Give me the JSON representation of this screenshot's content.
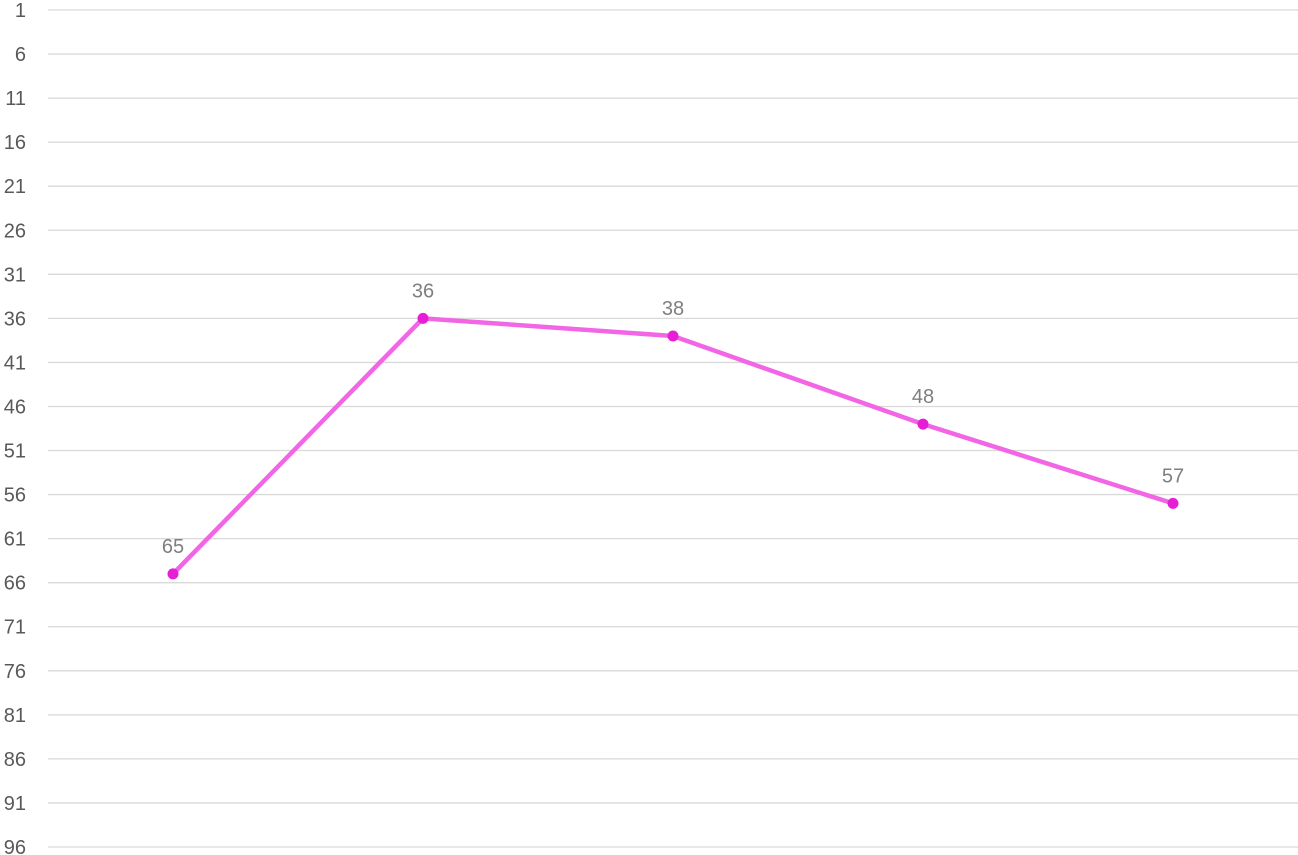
{
  "chart_data": {
    "type": "line",
    "title": "",
    "xlabel": "",
    "ylabel": "",
    "y_axis_reversed": true,
    "ylim": [
      1,
      96
    ],
    "y_ticks": [
      1,
      6,
      11,
      16,
      21,
      26,
      31,
      36,
      41,
      46,
      51,
      56,
      61,
      66,
      71,
      76,
      81,
      86,
      91,
      96
    ],
    "y_tick_labels": [
      "1",
      "6",
      "11",
      "16",
      "21",
      "26",
      "31",
      "36",
      "41",
      "46",
      "51",
      "56",
      "61",
      "66",
      "71",
      "76",
      "81",
      "86",
      "91",
      "96"
    ],
    "grid": true,
    "legend": "none",
    "series": [
      {
        "color": "#f266e6",
        "marker_color": "#e61ed6",
        "values": [
          65,
          36,
          38,
          48,
          57
        ],
        "value_labels": [
          "65",
          "36",
          "38",
          "48",
          "57"
        ]
      }
    ]
  }
}
